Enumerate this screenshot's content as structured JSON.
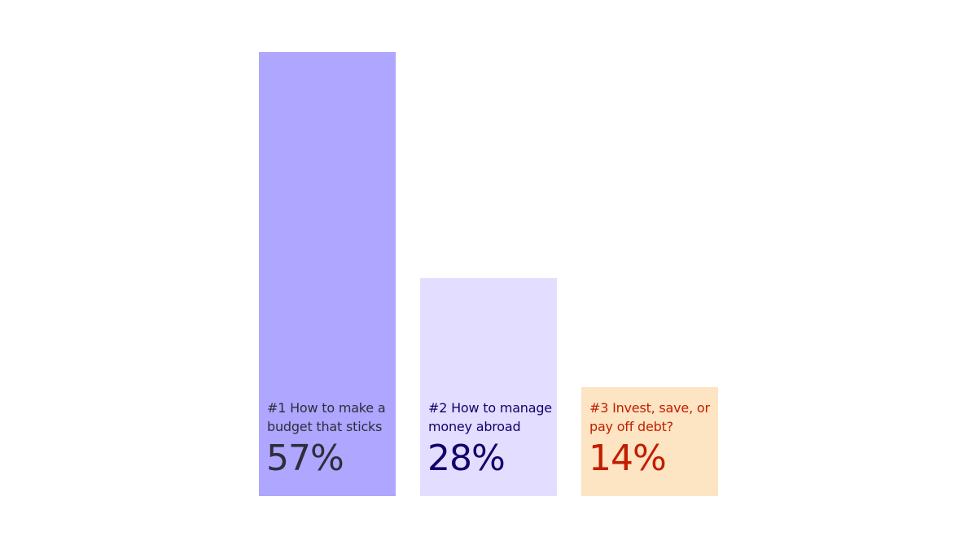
{
  "chart_data": {
    "type": "bar",
    "categories": [
      "#1 How to make a budget that sticks",
      "#2 How to manage money abroad",
      "#3 Invest, save, or pay off debt?"
    ],
    "values": [
      57,
      28,
      14
    ],
    "value_labels": [
      "57%",
      "28%",
      "14%"
    ],
    "colors": [
      "#aea6ff",
      "#e3ddff",
      "#fde4c2"
    ],
    "label_colors": [
      "#2f2d3a",
      "#14006b",
      "#c21d00"
    ]
  }
}
